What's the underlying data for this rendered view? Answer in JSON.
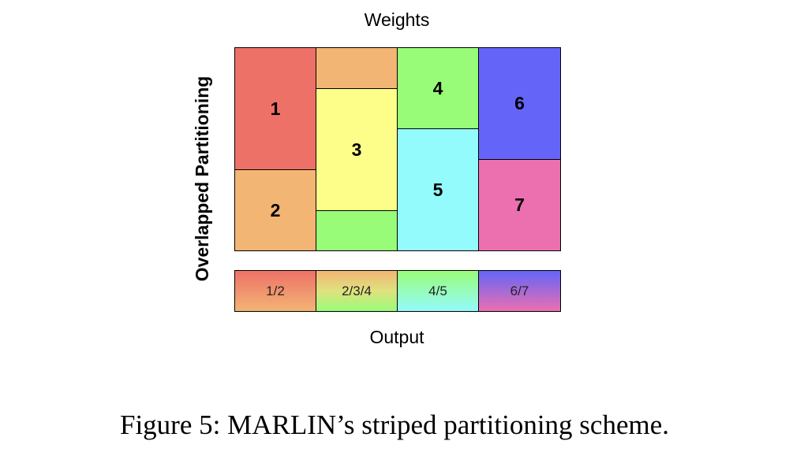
{
  "labels": {
    "top": "Weights",
    "side": "Overlapped Partitioning",
    "bottom": "Output"
  },
  "blocks": {
    "b1": "1",
    "b2": "2",
    "b3": "3",
    "b4": "4",
    "b5": "5",
    "b6": "6",
    "b7": "7"
  },
  "outputs": [
    "1/2",
    "2/3/4",
    "4/5",
    "6/7"
  ],
  "colors": {
    "red": "#ee7168",
    "orange": "#f3b574",
    "yellow": "#fdfd8a",
    "green": "#99fc79",
    "cyan": "#94fbfc",
    "blue": "#6465f8",
    "pink": "#ec6fb0"
  },
  "caption": "Figure 5: MARLIN’s striped partitioning scheme."
}
